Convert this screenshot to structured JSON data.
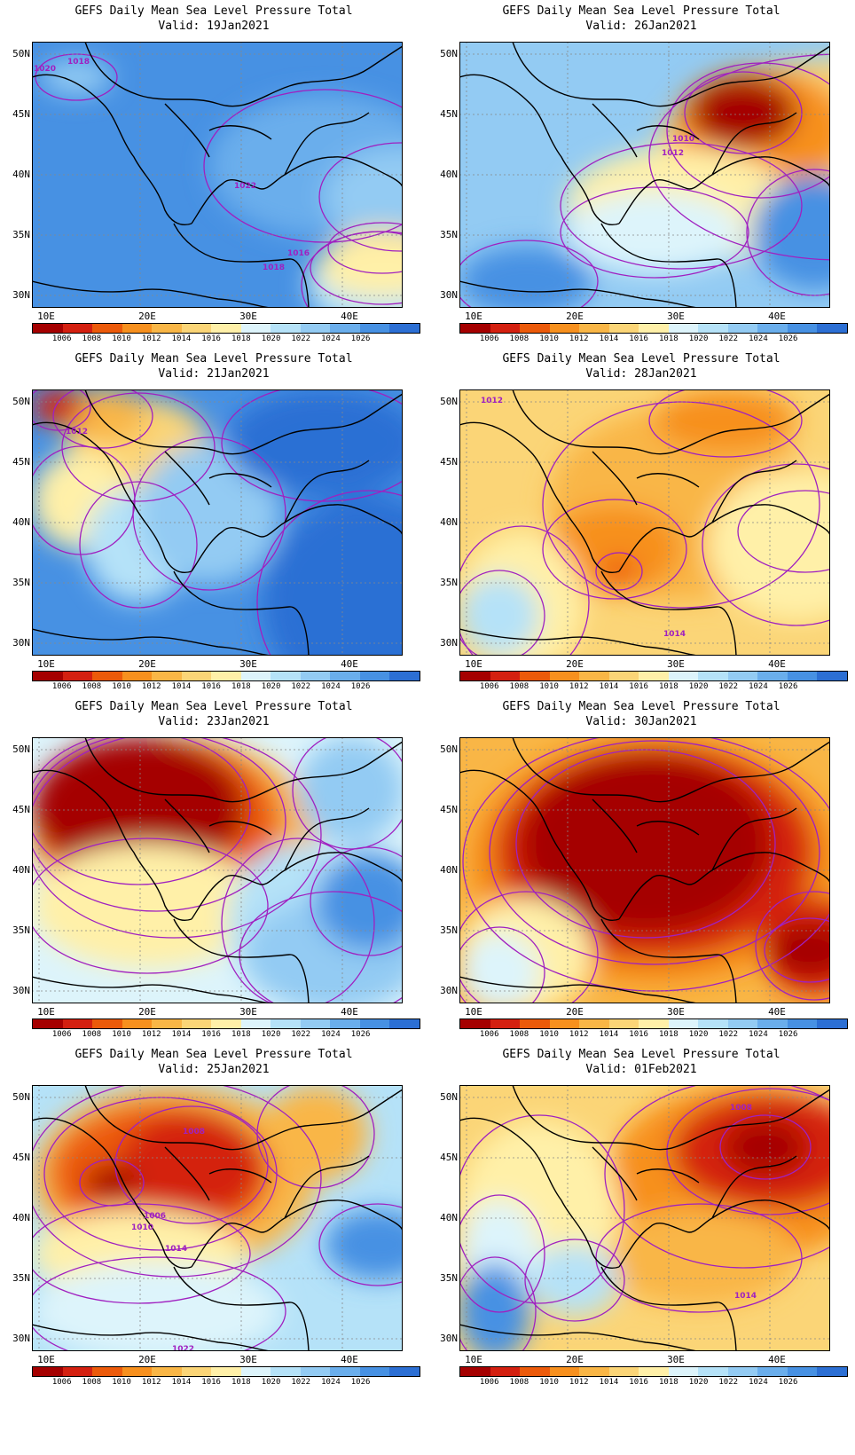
{
  "colorbar": {
    "colors": [
      "#a50000",
      "#d42010",
      "#ec5a0a",
      "#f7901e",
      "#f9b646",
      "#fbd577",
      "#fff0a8",
      "#ddf4fb",
      "#b5e2f8",
      "#93cbf3",
      "#6aaeec",
      "#4791e3",
      "#2c6fd4"
    ],
    "labels": [
      "1006",
      "1008",
      "1010",
      "1012",
      "1014",
      "1016",
      "1018",
      "1020",
      "1022",
      "1024",
      "1026"
    ]
  },
  "axes": {
    "lat_labels": [
      "50N",
      "45N",
      "40N",
      "35N",
      "30N"
    ],
    "lon_labels": [
      "10E",
      "20E",
      "30E",
      "40E"
    ]
  },
  "panels": [
    {
      "title": "GEFS Daily Mean Sea Level Pressure Total",
      "valid": "Valid: 19Jan2021",
      "bg": "#4791e3",
      "blobs": [
        [
          "#6aaeec",
          200,
          60,
          260,
          160
        ],
        [
          "#93cbf3",
          330,
          120,
          170,
          110
        ],
        [
          "#b5e2f8",
          310,
          220,
          160,
          110
        ],
        [
          "#fbd577",
          340,
          210,
          110,
          45
        ],
        [
          "#fff0a8",
          320,
          220,
          150,
          70
        ],
        [
          "#93cbf3",
          10,
          20,
          80,
          40
        ]
      ],
      "contour_labels": [
        [
          "1018",
          40,
          25
        ],
        [
          "1020",
          2,
          33
        ],
        [
          "1022",
          228,
          165
        ],
        [
          "1016",
          288,
          241
        ],
        [
          "1018",
          260,
          257
        ]
      ]
    },
    {
      "title": "GEFS Daily Mean Sea Level Pressure Total",
      "valid": "Valid: 26Jan2021",
      "bg": "#93cbf3",
      "blobs": [
        [
          "#fbd577",
          220,
          20,
          420,
          220
        ],
        [
          "#f7901e",
          240,
          30,
          200,
          140
        ],
        [
          "#a50000",
          260,
          40,
          120,
          80
        ],
        [
          "#fff0a8",
          120,
          120,
          260,
          130
        ],
        [
          "#ddf4fb",
          120,
          170,
          200,
          90
        ],
        [
          "#4791e3",
          330,
          150,
          140,
          130
        ],
        [
          "#4791e3",
          0,
          230,
          150,
          80
        ]
      ],
      "contour_labels": [
        [
          "1010",
          240,
          112
        ],
        [
          "1012",
          228,
          128
        ]
      ]
    },
    {
      "title": "GEFS Daily Mean Sea Level Pressure Total",
      "valid": "Valid: 21Jan2021",
      "bg": "#4791e3",
      "blobs": [
        [
          "#fbd577",
          40,
          10,
          160,
          110
        ],
        [
          "#f9b646",
          30,
          0,
          100,
          60
        ],
        [
          "#d42010",
          0,
          0,
          60,
          40
        ],
        [
          "#fff0a8",
          0,
          70,
          110,
          110
        ],
        [
          "#b5e2f8",
          60,
          110,
          120,
          130
        ],
        [
          "#93cbf3",
          120,
          60,
          160,
          160
        ],
        [
          "#2c6fd4",
          260,
          120,
          240,
          240
        ],
        [
          "#2c6fd4",
          220,
          0,
          220,
          120
        ]
      ],
      "contour_labels": [
        [
          "1012",
          38,
          50
        ]
      ]
    },
    {
      "title": "GEFS Daily Mean Sea Level Pressure Total",
      "valid": "Valid: 28Jan2021",
      "bg": "#fbd577",
      "blobs": [
        [
          "#f9b646",
          100,
          20,
          300,
          220
        ],
        [
          "#f7901e",
          220,
          0,
          160,
          70
        ],
        [
          "#f7901e",
          100,
          130,
          150,
          100
        ],
        [
          "#ec5a0a",
          160,
          190,
          40,
          30
        ],
        [
          "#fff0a8",
          0,
          160,
          140,
          160
        ],
        [
          "#b5e2f8",
          0,
          210,
          90,
          90
        ],
        [
          "#ddf4fb",
          320,
          120,
          140,
          80
        ],
        [
          "#fff0a8",
          280,
          90,
          200,
          170
        ]
      ],
      "contour_labels": [
        [
          "1012",
          24,
          15
        ],
        [
          "1014",
          230,
          278
        ]
      ]
    },
    {
      "title": "GEFS Daily Mean Sea Level Pressure Total",
      "valid": "Valid: 23Jan2021",
      "bg": "#ddf4fb",
      "blobs": [
        [
          "#f9b646",
          0,
          0,
          320,
          220
        ],
        [
          "#ec5a0a",
          0,
          0,
          280,
          190
        ],
        [
          "#a50000",
          0,
          0,
          240,
          160
        ],
        [
          "#fff0a8",
          0,
          120,
          260,
          140
        ],
        [
          "#b5e2f8",
          220,
          120,
          160,
          180
        ],
        [
          "#93cbf3",
          240,
          180,
          200,
          130
        ],
        [
          "#4791e3",
          320,
          130,
          120,
          110
        ],
        [
          "#93cbf3",
          300,
          0,
          120,
          120
        ]
      ],
      "contour_labels": []
    },
    {
      "title": "GEFS Daily Mean Sea Level Pressure Total",
      "valid": "Valid: 30Jan2021",
      "bg": "#f9b646",
      "blobs": [
        [
          "#f7901e",
          10,
          0,
          420,
          280
        ],
        [
          "#d42010",
          40,
          10,
          360,
          240
        ],
        [
          "#a50000",
          70,
          20,
          280,
          200
        ],
        [
          "#fff0a8",
          0,
          180,
          150,
          130
        ],
        [
          "#ddf4fb",
          0,
          220,
          90,
          90
        ],
        [
          "#d42010",
          340,
          180,
          120,
          110
        ],
        [
          "#a50000",
          350,
          210,
          90,
          60
        ]
      ],
      "contour_labels": []
    },
    {
      "title": "GEFS Daily Mean Sea Level Pressure Total",
      "valid": "Valid: 25Jan2021",
      "bg": "#b5e2f8",
      "blobs": [
        [
          "#f9b646",
          0,
          0,
          320,
          210
        ],
        [
          "#ec5a0a",
          20,
          20,
          250,
          160
        ],
        [
          "#d42010",
          100,
          30,
          160,
          120
        ],
        [
          "#a50000",
          60,
          90,
          60,
          40
        ],
        [
          "#fff0a8",
          0,
          140,
          240,
          100
        ],
        [
          "#ddf4fb",
          0,
          200,
          280,
          110
        ],
        [
          "#4791e3",
          330,
          140,
          120,
          80
        ],
        [
          "#f9b646",
          260,
          0,
          120,
          110
        ]
      ],
      "contour_labels": [
        [
          "1008",
          170,
          55
        ],
        [
          "1006",
          126,
          150
        ],
        [
          "1010",
          112,
          163
        ],
        [
          "1014",
          150,
          187
        ],
        [
          "1022",
          158,
          300
        ]
      ]
    },
    {
      "title": "GEFS Daily Mean Sea Level Pressure Total",
      "valid": "Valid: 01Feb2021",
      "bg": "#fbd577",
      "blobs": [
        [
          "#f7901e",
          170,
          0,
          300,
          200
        ],
        [
          "#d42010",
          240,
          10,
          220,
          130
        ],
        [
          "#a50000",
          300,
          40,
          90,
          60
        ],
        [
          "#f9b646",
          160,
          140,
          220,
          110
        ],
        [
          "#fff0a8",
          0,
          40,
          180,
          200
        ],
        [
          "#ddf4fb",
          0,
          130,
          90,
          120
        ],
        [
          "#4791e3",
          0,
          200,
          80,
          110
        ],
        [
          "#b5e2f8",
          80,
          180,
          100,
          80
        ]
      ],
      "contour_labels": [
        [
          "1008",
          305,
          28
        ],
        [
          "1014",
          310,
          240
        ]
      ]
    }
  ]
}
